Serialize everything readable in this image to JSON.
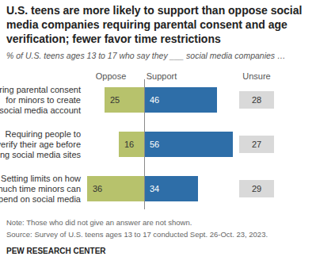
{
  "chart_data": {
    "type": "bar",
    "orientation": "horizontal",
    "title": "U.S. teens are more likely to support than oppose social media companies requiring parental consent and age verification; fewer favor time restrictions",
    "subtitle": "% of U.S. teens ages 13 to 17 who say they ___ social media companies …",
    "categories": [
      "Requiring parental consent for minors to create a social media account",
      "Requiring people to verify their age before using social media sites",
      "Setting limits on how much time minors can spend on social media"
    ],
    "series": [
      {
        "name": "Oppose",
        "color": "#b7c26c",
        "values": [
          25,
          16,
          36
        ]
      },
      {
        "name": "Support",
        "color": "#2e6ea8",
        "values": [
          46,
          56,
          34
        ]
      },
      {
        "name": "Unsure",
        "color": "#d9d9d9",
        "values": [
          28,
          27,
          29
        ]
      }
    ],
    "data_labels": true,
    "tick_labels": "y",
    "annotations": [
      "Note: Those who did not give an answer are not shown.",
      "Source: Survey of U.S. teens ages 13 to 17 conducted Sept. 26-Oct. 23, 2023.",
      "PEW RESEARCH CENTER"
    ]
  }
}
